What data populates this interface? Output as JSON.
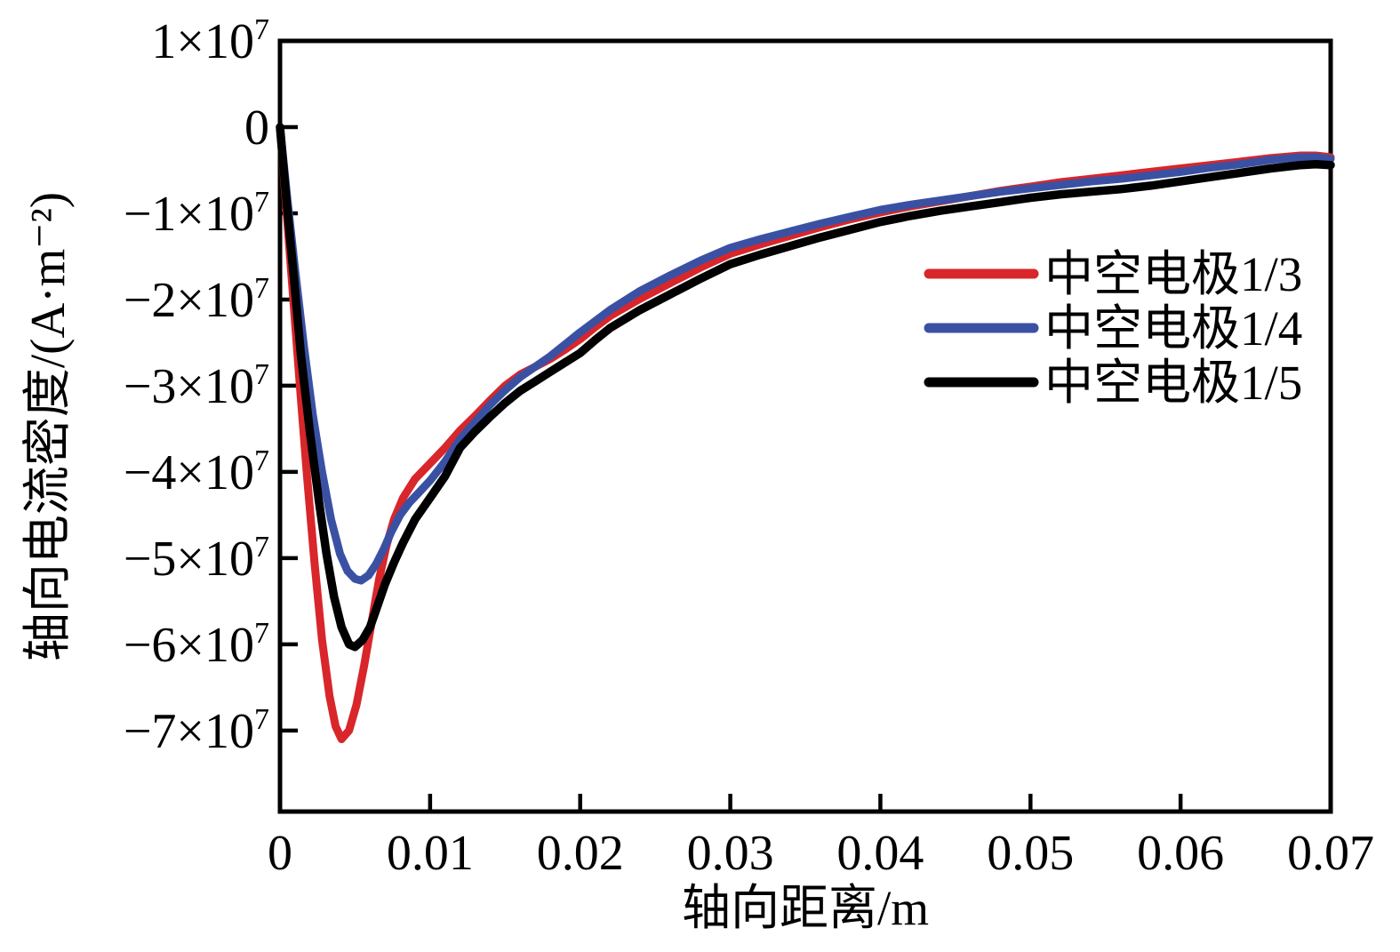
{
  "figure": {
    "background": "#ffffff"
  },
  "chart_data": {
    "type": "line",
    "title": "",
    "xlabel": "轴向距离/m",
    "ylabel": "轴向电流密度/(A·m⁻²)",
    "xlim": [
      0,
      0.07
    ],
    "ylim": [
      -79400000.0,
      10000000.0
    ],
    "grid": false,
    "frame": "box",
    "ticks_direction": "in",
    "legend_position": "inside-right",
    "axis_color": "#000000",
    "x_ticks": [
      {
        "value": 0,
        "label": "0"
      },
      {
        "value": 0.01,
        "label": "0.01"
      },
      {
        "value": 0.02,
        "label": "0.02"
      },
      {
        "value": 0.03,
        "label": "0.03"
      },
      {
        "value": 0.04,
        "label": "0.04"
      },
      {
        "value": 0.05,
        "label": "0.05"
      },
      {
        "value": 0.06,
        "label": "0.06"
      },
      {
        "value": 0.07,
        "label": "0.07"
      }
    ],
    "y_ticks": [
      {
        "value": 10000000.0,
        "label": "1×10^7"
      },
      {
        "value": 0,
        "label": "0"
      },
      {
        "value": -10000000.0,
        "label": "−1×10^7"
      },
      {
        "value": -20000000.0,
        "label": "−2×10^7"
      },
      {
        "value": -30000000.0,
        "label": "−3×10^7"
      },
      {
        "value": -40000000.0,
        "label": "−4×10^7"
      },
      {
        "value": -50000000.0,
        "label": "−5×10^7"
      },
      {
        "value": -60000000.0,
        "label": "−6×10^7"
      },
      {
        "value": -70000000.0,
        "label": "−7×10^7"
      }
    ],
    "series": [
      {
        "name": "中空电极1/3",
        "color": "#d8262a",
        "width": 9,
        "points": [
          [
            0,
            0
          ],
          [
            0.0004,
            -9000000.0
          ],
          [
            0.0008,
            -18000000.0
          ],
          [
            0.0013,
            -29500000.0
          ],
          [
            0.0018,
            -40500000.0
          ],
          [
            0.0023,
            -50500000.0
          ],
          [
            0.0028,
            -59500000.0
          ],
          [
            0.0033,
            -66000000.0
          ],
          [
            0.0037,
            -69500000.0
          ],
          [
            0.0041,
            -71000000.0
          ],
          [
            0.0046,
            -70000000.0
          ],
          [
            0.0051,
            -67000000.0
          ],
          [
            0.0056,
            -62500000.0
          ],
          [
            0.0061,
            -57500000.0
          ],
          [
            0.0066,
            -52500000.0
          ],
          [
            0.0071,
            -48500000.0
          ],
          [
            0.0076,
            -45500000.0
          ],
          [
            0.0082,
            -43000000.0
          ],
          [
            0.009,
            -40800000.0
          ],
          [
            0.01,
            -39000000.0
          ],
          [
            0.011,
            -37200000.0
          ],
          [
            0.012,
            -35200000.0
          ],
          [
            0.013,
            -33500000.0
          ],
          [
            0.014,
            -31700000.0
          ],
          [
            0.015,
            -30000000.0
          ],
          [
            0.016,
            -28700000.0
          ],
          [
            0.017,
            -27800000.0
          ],
          [
            0.018,
            -26900000.0
          ],
          [
            0.019,
            -25800000.0
          ],
          [
            0.02,
            -24600000.0
          ],
          [
            0.021,
            -23200000.0
          ],
          [
            0.022,
            -21900000.0
          ],
          [
            0.024,
            -19900000.0
          ],
          [
            0.026,
            -18100000.0
          ],
          [
            0.028,
            -16300000.0
          ],
          [
            0.03,
            -14700000.0
          ],
          [
            0.032,
            -13600000.0
          ],
          [
            0.034,
            -12600000.0
          ],
          [
            0.036,
            -11600000.0
          ],
          [
            0.038,
            -10700000.0
          ],
          [
            0.04,
            -9900000.0
          ],
          [
            0.042,
            -9200000.0
          ],
          [
            0.044,
            -8600000.0
          ],
          [
            0.046,
            -8000000.0
          ],
          [
            0.048,
            -7400000.0
          ],
          [
            0.05,
            -6900000.0
          ],
          [
            0.052,
            -6400000.0
          ],
          [
            0.054,
            -6000000.0
          ],
          [
            0.056,
            -5600000.0
          ],
          [
            0.058,
            -5200000.0
          ],
          [
            0.06,
            -4800000.0
          ],
          [
            0.062,
            -4400000.0
          ],
          [
            0.064,
            -4000000.0
          ],
          [
            0.066,
            -3600000.0
          ],
          [
            0.068,
            -3300000.0
          ],
          [
            0.069,
            -3300000.0
          ],
          [
            0.07,
            -3500000.0
          ]
        ]
      },
      {
        "name": "中空电极1/4",
        "color": "#3a51a3",
        "width": 9,
        "points": [
          [
            0,
            0
          ],
          [
            0.0005,
            -8500000.0
          ],
          [
            0.001,
            -16500000.0
          ],
          [
            0.0016,
            -25500000.0
          ],
          [
            0.0022,
            -33500000.0
          ],
          [
            0.0028,
            -40000000.0
          ],
          [
            0.0034,
            -45500000.0
          ],
          [
            0.004,
            -49500000.0
          ],
          [
            0.0045,
            -51500000.0
          ],
          [
            0.005,
            -52400000.0
          ],
          [
            0.0054,
            -52600000.0
          ],
          [
            0.0059,
            -52000000.0
          ],
          [
            0.0064,
            -50700000.0
          ],
          [
            0.0069,
            -49000000.0
          ],
          [
            0.0074,
            -47000000.0
          ],
          [
            0.008,
            -45000000.0
          ],
          [
            0.0086,
            -43600000.0
          ],
          [
            0.0092,
            -42500000.0
          ],
          [
            0.01,
            -41000000.0
          ],
          [
            0.011,
            -38800000.0
          ],
          [
            0.012,
            -36200000.0
          ],
          [
            0.013,
            -34200000.0
          ],
          [
            0.014,
            -32200000.0
          ],
          [
            0.015,
            -30500000.0
          ],
          [
            0.016,
            -29000000.0
          ],
          [
            0.017,
            -27800000.0
          ],
          [
            0.018,
            -26600000.0
          ],
          [
            0.019,
            -25200000.0
          ],
          [
            0.02,
            -23800000.0
          ],
          [
            0.021,
            -22500000.0
          ],
          [
            0.022,
            -21200000.0
          ],
          [
            0.024,
            -19000000.0
          ],
          [
            0.026,
            -17200000.0
          ],
          [
            0.028,
            -15500000.0
          ],
          [
            0.03,
            -14000000.0
          ],
          [
            0.032,
            -13000000.0
          ],
          [
            0.034,
            -12100000.0
          ],
          [
            0.036,
            -11200000.0
          ],
          [
            0.038,
            -10400000.0
          ],
          [
            0.04,
            -9600000.0
          ],
          [
            0.042,
            -9000000.0
          ],
          [
            0.044,
            -8500000.0
          ],
          [
            0.046,
            -8000000.0
          ],
          [
            0.048,
            -7500000.0
          ],
          [
            0.05,
            -7100000.0
          ],
          [
            0.052,
            -6700000.0
          ],
          [
            0.054,
            -6300000.0
          ],
          [
            0.056,
            -6000000.0
          ],
          [
            0.058,
            -5600000.0
          ],
          [
            0.06,
            -5200000.0
          ],
          [
            0.062,
            -4700000.0
          ],
          [
            0.064,
            -4300000.0
          ],
          [
            0.066,
            -3800000.0
          ],
          [
            0.068,
            -3500000.0
          ],
          [
            0.069,
            -3500000.0
          ],
          [
            0.07,
            -3700000.0
          ]
        ]
      },
      {
        "name": "中空电极1/5",
        "color": "#000000",
        "width": 9.5,
        "points": [
          [
            0,
            0
          ],
          [
            0.0004,
            -8000000.0
          ],
          [
            0.0009,
            -17000000.0
          ],
          [
            0.0014,
            -26500000.0
          ],
          [
            0.002,
            -35500000.0
          ],
          [
            0.0026,
            -43500000.0
          ],
          [
            0.0031,
            -49500000.0
          ],
          [
            0.0036,
            -54500000.0
          ],
          [
            0.0041,
            -58000000.0
          ],
          [
            0.0046,
            -60000000.0
          ],
          [
            0.005,
            -60300000.0
          ],
          [
            0.0055,
            -59500000.0
          ],
          [
            0.006,
            -58000000.0
          ],
          [
            0.0065,
            -55500000.0
          ],
          [
            0.007,
            -53000000.0
          ],
          [
            0.0076,
            -50500000.0
          ],
          [
            0.0082,
            -48200000.0
          ],
          [
            0.009,
            -45500000.0
          ],
          [
            0.01,
            -43000000.0
          ],
          [
            0.011,
            -40500000.0
          ],
          [
            0.012,
            -37200000.0
          ],
          [
            0.013,
            -35300000.0
          ],
          [
            0.014,
            -33600000.0
          ],
          [
            0.015,
            -32000000.0
          ],
          [
            0.016,
            -30600000.0
          ],
          [
            0.017,
            -29500000.0
          ],
          [
            0.018,
            -28400000.0
          ],
          [
            0.019,
            -27300000.0
          ],
          [
            0.02,
            -26200000.0
          ],
          [
            0.021,
            -24700000.0
          ],
          [
            0.022,
            -23300000.0
          ],
          [
            0.024,
            -21200000.0
          ],
          [
            0.026,
            -19400000.0
          ],
          [
            0.028,
            -17600000.0
          ],
          [
            0.03,
            -15900000.0
          ],
          [
            0.032,
            -14800000.0
          ],
          [
            0.034,
            -13800000.0
          ],
          [
            0.036,
            -12800000.0
          ],
          [
            0.038,
            -11900000.0
          ],
          [
            0.04,
            -11000000.0
          ],
          [
            0.042,
            -10300000.0
          ],
          [
            0.044,
            -9700000.0
          ],
          [
            0.046,
            -9200000.0
          ],
          [
            0.048,
            -8700000.0
          ],
          [
            0.05,
            -8200000.0
          ],
          [
            0.052,
            -7800000.0
          ],
          [
            0.054,
            -7500000.0
          ],
          [
            0.056,
            -7200000.0
          ],
          [
            0.058,
            -6800000.0
          ],
          [
            0.06,
            -6300000.0
          ],
          [
            0.062,
            -5800000.0
          ],
          [
            0.064,
            -5300000.0
          ],
          [
            0.066,
            -4800000.0
          ],
          [
            0.068,
            -4400000.0
          ],
          [
            0.069,
            -4300000.0
          ],
          [
            0.07,
            -4400000.0
          ]
        ]
      }
    ]
  }
}
